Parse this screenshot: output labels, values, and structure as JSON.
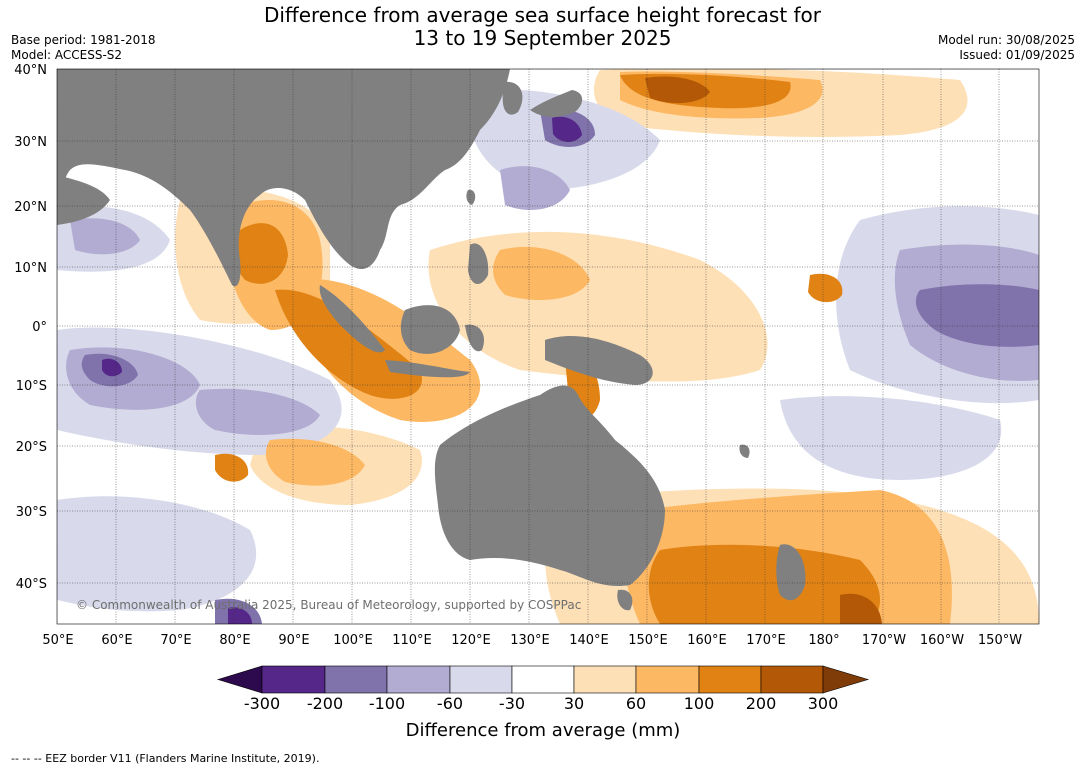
{
  "header": {
    "title_line1": "Difference from average sea surface height forecast for",
    "title_line2": "13 to 19 September 2025",
    "base_period": "Base period: 1981-2018",
    "model": "Model: ACCESS-S2",
    "model_run": "Model run: 30/08/2025",
    "issued": "Issued: 01/09/2025"
  },
  "map": {
    "lat_labels": [
      "40°N",
      "30°N",
      "20°N",
      "10°N",
      "0°",
      "10°S",
      "20°S",
      "30°S",
      "40°S"
    ],
    "lon_labels": [
      "50°E",
      "60°E",
      "70°E",
      "80°E",
      "90°E",
      "100°E",
      "110°E",
      "120°E",
      "130°E",
      "140°E",
      "150°E",
      "160°E",
      "170°E",
      "180°",
      "170°W",
      "160°W",
      "150°W"
    ],
    "copyright": "© Commonwealth of Australia 2025, Bureau of Meteorology, supported by COSPPac",
    "colors": {
      "land": "#808080",
      "ocean_neutral": "#ffffff"
    }
  },
  "colorbar": {
    "title": "Difference from average (mm)",
    "tick_labels": [
      "-300",
      "-200",
      "-100",
      "-60",
      "-30",
      "30",
      "60",
      "100",
      "200",
      "300"
    ],
    "colors": [
      "#2d0a4e",
      "#542788",
      "#8073ac",
      "#b2abd2",
      "#d8daeb",
      "#ffffff",
      "#fee0b6",
      "#fdb863",
      "#e08214",
      "#b35806",
      "#7f3b08"
    ]
  },
  "footer": {
    "eez_note": "--  --  -- EEZ border V11 (Flanders Marine Institute, 2019)."
  }
}
